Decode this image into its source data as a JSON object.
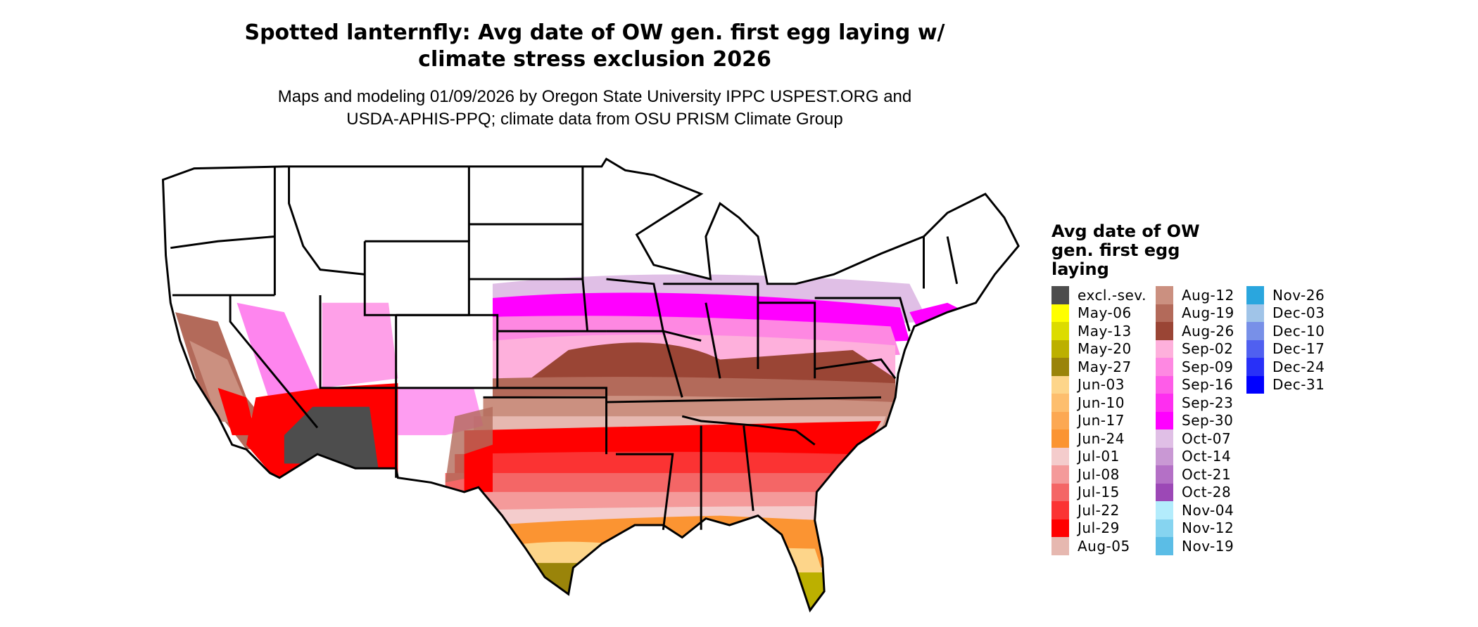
{
  "title": {
    "line1": "Spotted lanternfly: Avg date of OW gen. first egg laying w/",
    "line2": "climate stress exclusion 2026"
  },
  "subtitle": {
    "line1": "Maps and modeling 01/09/2026 by Oregon State University IPPC USPEST.ORG and",
    "line2": "USDA-APHIS-PPQ; climate data from OSU PRISM Climate Group"
  },
  "map": {
    "region": "Contiguous United States",
    "background_color": "#ffffff",
    "border_color": "#000000"
  },
  "legend": {
    "title": "Avg date of OW gen. first egg laying",
    "columns": [
      [
        {
          "label": "excl.-sev.",
          "color": "#4d4d4d"
        },
        {
          "label": "May-06",
          "color": "#ffff00"
        },
        {
          "label": "May-13",
          "color": "#dcdc00"
        },
        {
          "label": "May-20",
          "color": "#bcb000"
        },
        {
          "label": "May-27",
          "color": "#9a840a"
        },
        {
          "label": "Jun-03",
          "color": "#fdd58a"
        },
        {
          "label": "Jun-10",
          "color": "#fdbe6e"
        },
        {
          "label": "Jun-17",
          "color": "#fca853"
        },
        {
          "label": "Jun-24",
          "color": "#fb9432"
        },
        {
          "label": "Jul-01",
          "color": "#f4cccc"
        },
        {
          "label": "Jul-08",
          "color": "#f49a9a"
        },
        {
          "label": "Jul-15",
          "color": "#f46666"
        },
        {
          "label": "Jul-22",
          "color": "#fb3333"
        },
        {
          "label": "Jul-29",
          "color": "#ff0000"
        },
        {
          "label": "Aug-05",
          "color": "#e6b8b0"
        }
      ],
      [
        {
          "label": "Aug-12",
          "color": "#cb9080"
        },
        {
          "label": "Aug-19",
          "color": "#b36a5a"
        },
        {
          "label": "Aug-26",
          "color": "#9a4535"
        },
        {
          "label": "Sep-02",
          "color": "#feb0dc"
        },
        {
          "label": "Sep-09",
          "color": "#fe88e2"
        },
        {
          "label": "Sep-16",
          "color": "#fe5ce8"
        },
        {
          "label": "Sep-23",
          "color": "#fe2ef0"
        },
        {
          "label": "Sep-30",
          "color": "#ff00ff"
        },
        {
          "label": "Oct-07",
          "color": "#e0bfe6"
        },
        {
          "label": "Oct-14",
          "color": "#c998d4"
        },
        {
          "label": "Oct-21",
          "color": "#b470c6"
        },
        {
          "label": "Oct-28",
          "color": "#9c48b6"
        },
        {
          "label": "Nov-04",
          "color": "#b3ecfc"
        },
        {
          "label": "Nov-12",
          "color": "#86d4f0"
        },
        {
          "label": "Nov-19",
          "color": "#5bbde6"
        }
      ],
      [
        {
          "label": "Nov-26",
          "color": "#2aa6de"
        },
        {
          "label": "Dec-03",
          "color": "#a0c4e8"
        },
        {
          "label": "Dec-10",
          "color": "#7890e8"
        },
        {
          "label": "Dec-17",
          "color": "#5060f0"
        },
        {
          "label": "Dec-24",
          "color": "#2830f8"
        },
        {
          "label": "Dec-31",
          "color": "#0000ff"
        }
      ]
    ]
  }
}
